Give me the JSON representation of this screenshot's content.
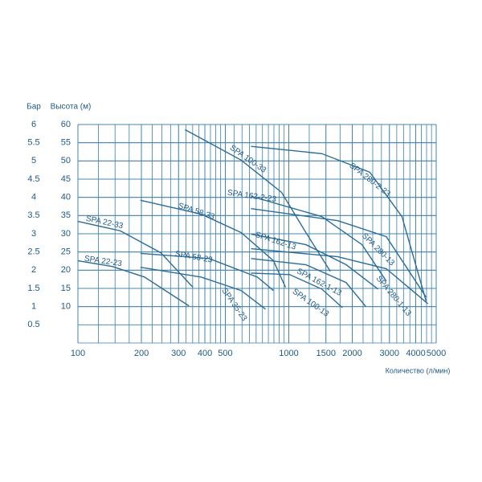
{
  "chart_data": {
    "type": "line",
    "y_label": "Высота (м)",
    "y2_label": "Бар",
    "x_label": "Количество (л/мин)",
    "log_x": true,
    "grid": true,
    "xlim": [
      100,
      5000
    ],
    "xticks": [
      100,
      200,
      300,
      400,
      500,
      1000,
      1500,
      2000,
      3000,
      4000,
      5000
    ],
    "ylim": [
      0,
      60
    ],
    "yticks": [
      10,
      15,
      20,
      25,
      30,
      35,
      40,
      45,
      50,
      55,
      60
    ],
    "y2lim": [
      0,
      6
    ],
    "y2ticks": [
      0.5,
      1,
      1.5,
      2,
      2.5,
      3,
      3.5,
      4,
      4.5,
      5,
      5.5,
      6
    ],
    "series": [
      {
        "name": "SPA 22-23",
        "color": "#2b6d99",
        "x": [
          100,
          146,
          207,
          336
        ],
        "values": [
          22.6,
          21.0,
          18.1,
          10.2
        ]
      },
      {
        "name": "SPA 22-33",
        "color": "#2b6d99",
        "x": [
          100,
          159,
          247,
          351
        ],
        "values": [
          33.4,
          30.8,
          24.8,
          15.3
        ]
      },
      {
        "name": "SPA 35-23",
        "color": "#2b6d99",
        "x": [
          198,
          384,
          595,
          775
        ],
        "values": [
          20.8,
          18.1,
          14.4,
          9.3
        ]
      },
      {
        "name": "SPA 58-23",
        "color": "#2b6d99",
        "x": [
          198,
          419,
          710,
          846
        ],
        "values": [
          24.6,
          23.2,
          18.1,
          14.4
        ]
      },
      {
        "name": "SPA 58-33",
        "color": "#2b6d99",
        "x": [
          198,
          384,
          595,
          846,
          965
        ],
        "values": [
          39.2,
          35.4,
          30.3,
          22.6,
          15.3
        ]
      },
      {
        "name": "SPA 100-33",
        "color": "#2b6d99",
        "x": [
          322,
          595,
          923,
          1206,
          1573
        ],
        "values": [
          58.6,
          50.2,
          41.4,
          30.3,
          19.7
        ]
      },
      {
        "name": "SPA 100-13",
        "color": "#2b6d99",
        "x": [
          662,
          1009,
          1435,
          1796
        ],
        "values": [
          19.2,
          18.8,
          14.8,
          9.7
        ]
      },
      {
        "name": "SPA 162-2-23",
        "color": "#2b6d99",
        "x": [
          662,
          1435,
          2225,
          2900
        ],
        "values": [
          40.3,
          34.7,
          27.0,
          17.0
        ]
      },
      {
        "name": "SPA 162-13",
        "color": "#2b6d99",
        "x": [
          662,
          1206,
          1870,
          2651
        ],
        "values": [
          29.9,
          27.0,
          21.5,
          14.8
        ]
      },
      {
        "name": "SPA 162-1-13",
        "color": "#2b6d99",
        "x": [
          662,
          1206,
          1870,
          2319
        ],
        "values": [
          23.2,
          21.5,
          16.6,
          10.0
        ]
      },
      {
        "name": "SPA 280-2-23",
        "color": "#2b6d99",
        "x": [
          662,
          1435,
          2420,
          3440,
          4478
        ],
        "values": [
          54.0,
          52.0,
          46.9,
          34.7,
          11.5
        ]
      },
      {
        "name": "SPA 280-13",
        "color": "#2b6d99",
        "x": [
          662,
          1707,
          2900,
          4478
        ],
        "values": [
          36.9,
          33.6,
          29.2,
          12.6
        ]
      },
      {
        "name": "SPA 280-1-13",
        "color": "#2b6d99",
        "x": [
          662,
          1707,
          2900,
          4563
        ],
        "values": [
          25.9,
          23.7,
          20.4,
          10.8
        ]
      }
    ]
  }
}
